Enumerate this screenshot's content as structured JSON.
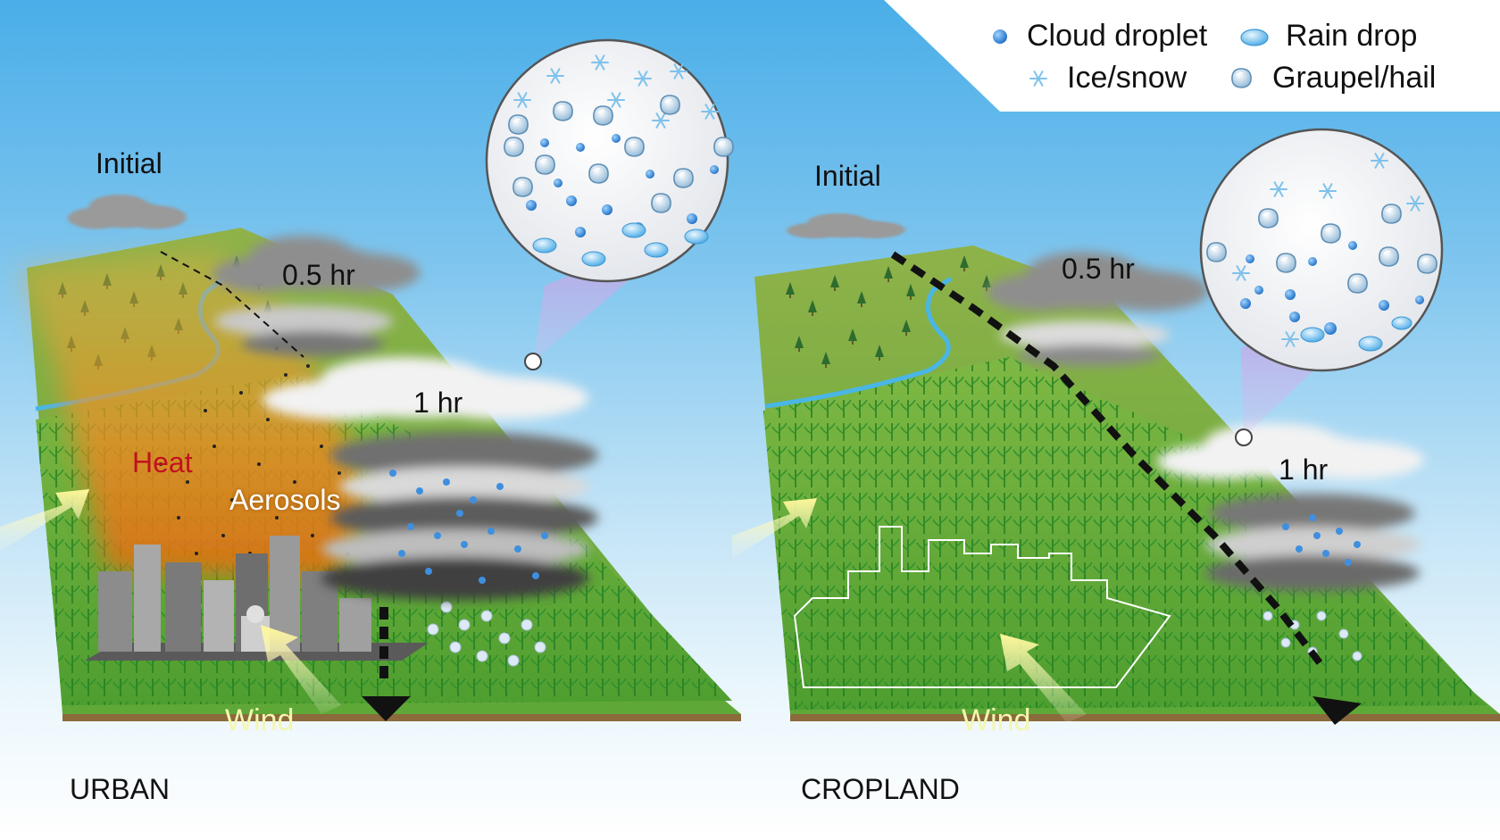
{
  "legend": {
    "cloud_droplet": "Cloud droplet",
    "rain_drop": "Rain drop",
    "ice_snow": "Ice/snow",
    "graupel_hail": "Graupel/hail"
  },
  "urban": {
    "panel_label": "URBAN",
    "initial": "Initial",
    "t05": "0.5 hr",
    "t1": "1 hr",
    "heat": "Heat",
    "aerosols": "Aerosols",
    "wind": "Wind"
  },
  "cropland": {
    "panel_label": "CROPLAND",
    "initial": "Initial",
    "t05": "0.5 hr",
    "t1": "1 hr",
    "wind": "Wind"
  },
  "colors": {
    "sky_top": "#4aaee8",
    "field_green": "#6fb23c",
    "heat_orange": "#e8781a",
    "heat_label": "#c1121f",
    "droplet_blue": "#2a7fd4",
    "river": "#49b6e6"
  },
  "icons": [
    "cloud-droplet-icon",
    "rain-drop-icon",
    "ice-snow-icon",
    "graupel-hail-icon"
  ]
}
